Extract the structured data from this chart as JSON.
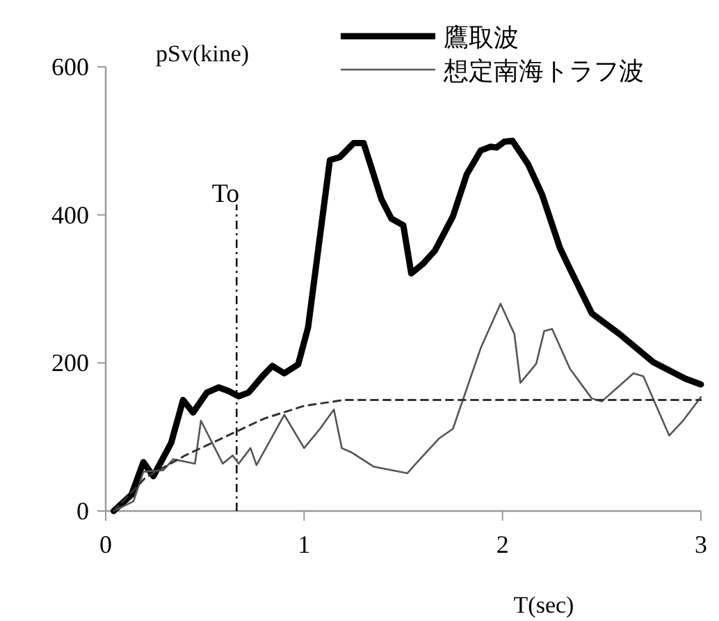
{
  "chart_data": {
    "type": "line",
    "ylabel": "pSv(kine)",
    "xlabel": "T(sec)",
    "xlim": [
      0,
      3
    ],
    "xticks": [
      0,
      1,
      2,
      3
    ],
    "ylim": [
      0,
      600
    ],
    "yticks": [
      0,
      200,
      400,
      600
    ],
    "grid": false,
    "legend": "top right",
    "marker": "none",
    "series": [
      {
        "name": "鷹取波",
        "color": "#000000",
        "line_style": "solid",
        "x": [
          0.04,
          0.13,
          0.19,
          0.24,
          0.33,
          0.39,
          0.44,
          0.51,
          0.57,
          0.62,
          0.67,
          0.72,
          0.79,
          0.84,
          0.9,
          0.97,
          1.02,
          1.13,
          1.18,
          1.25,
          1.3,
          1.39,
          1.44,
          1.5,
          1.54,
          1.6,
          1.66,
          1.75,
          1.82,
          1.89,
          1.94,
          1.97,
          2.01,
          2.05,
          2.13,
          2.2,
          2.29,
          2.34,
          2.45,
          2.59,
          2.76,
          2.92,
          3.0
        ],
        "values": [
          0,
          22,
          66,
          47,
          92,
          150,
          133,
          160,
          167,
          162,
          155,
          160,
          182,
          196,
          186,
          198,
          248,
          474,
          478,
          497,
          497,
          421,
          395,
          386,
          321,
          334,
          352,
          398,
          455,
          487,
          492,
          491,
          499,
          500,
          468,
          427,
          355,
          327,
          267,
          239,
          201,
          179,
          171
        ]
      },
      {
        "name": "想定南海トラフ波",
        "color": "#555555",
        "line_style": "solid",
        "x": [
          0.04,
          0.14,
          0.19,
          0.29,
          0.34,
          0.45,
          0.48,
          0.59,
          0.64,
          0.67,
          0.73,
          0.76,
          0.9,
          1.0,
          1.08,
          1.15,
          1.19,
          1.24,
          1.35,
          1.52,
          1.57,
          1.68,
          1.75,
          1.89,
          1.99,
          2.06,
          2.09,
          2.17,
          2.21,
          2.25,
          2.34,
          2.45,
          2.5,
          2.66,
          2.71,
          2.84,
          2.91,
          3.0
        ],
        "values": [
          0,
          13,
          53,
          55,
          70,
          64,
          122,
          64,
          75,
          64,
          85,
          62,
          130,
          85,
          111,
          137,
          85,
          79,
          60,
          51,
          66,
          98,
          111,
          220,
          280,
          239,
          173,
          199,
          243,
          246,
          192,
          152,
          148,
          186,
          182,
          102,
          122,
          154
        ]
      },
      {
        "color": "#333333",
        "line_style": "dashed",
        "x": [
          0.04,
          0.2,
          0.4,
          0.6,
          0.8,
          1.0,
          1.2,
          3.0
        ],
        "values": [
          0,
          45,
          75,
          100,
          125,
          142,
          150,
          150
        ]
      }
    ],
    "ref_lines": [
      {
        "axis": "x",
        "value": 0.66,
        "label": "To",
        "color": "#000000",
        "line_style": "dashdot"
      }
    ]
  }
}
